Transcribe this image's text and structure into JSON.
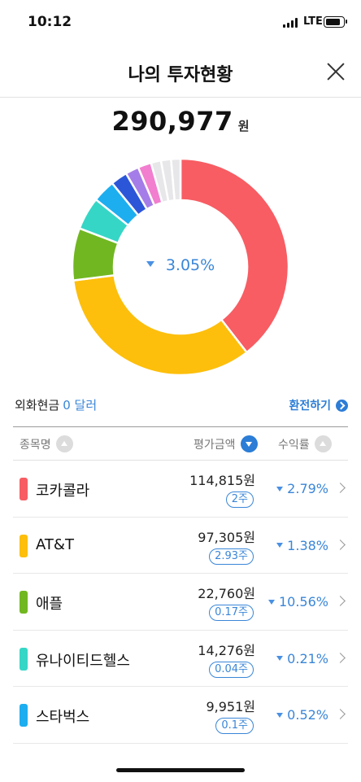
{
  "status": {
    "time": "10:12",
    "network": "LTE"
  },
  "header": {
    "title": "나의 투자현황"
  },
  "total": {
    "amount": "290,977",
    "unit": "원"
  },
  "donut": {
    "center_rate": "3.05%",
    "segments": [
      {
        "name": "코카콜라",
        "color": "#f75d63",
        "share": 0.395
      },
      {
        "name": "AT&T",
        "color": "#fdbf0c",
        "share": 0.335
      },
      {
        "name": "애플",
        "color": "#71b721",
        "share": 0.078
      },
      {
        "name": "유나이티드헬스",
        "color": "#36d6c6",
        "share": 0.049
      },
      {
        "name": "스타벅스",
        "color": "#1daef0",
        "share": 0.034
      },
      {
        "name": "",
        "color": "#2c56d8",
        "share": 0.025
      },
      {
        "name": "",
        "color": "#a57de8",
        "share": 0.02
      },
      {
        "name": "",
        "color": "#f27ecf",
        "share": 0.02
      },
      {
        "name": "",
        "color": "#e7e7ea",
        "share": 0.015
      },
      {
        "name": "",
        "color": "#e7e7ea",
        "share": 0.015
      },
      {
        "name": "",
        "color": "#e7e7ea",
        "share": 0.014
      }
    ]
  },
  "fx": {
    "label": "외화현금",
    "value": "0 달러",
    "exchange_label": "환전하기"
  },
  "table": {
    "headers": {
      "name": "종목명",
      "value": "평가금액",
      "rate": "수익률"
    },
    "rows": [
      {
        "name": "코카콜라",
        "color": "#f75d63",
        "amount": "114,815원",
        "qty": "2주",
        "rate": "2.79%"
      },
      {
        "name": "AT&T",
        "color": "#fdbf0c",
        "amount": "97,305원",
        "qty": "2.93주",
        "rate": "1.38%"
      },
      {
        "name": "애플",
        "color": "#71b721",
        "amount": "22,760원",
        "qty": "0.17주",
        "rate": "10.56%"
      },
      {
        "name": "유나이티드헬스",
        "color": "#36d6c6",
        "amount": "14,276원",
        "qty": "0.04주",
        "rate": "0.21%"
      },
      {
        "name": "스타벅스",
        "color": "#1daef0",
        "amount": "9,951원",
        "qty": "0.1주",
        "rate": "0.52%"
      }
    ]
  }
}
